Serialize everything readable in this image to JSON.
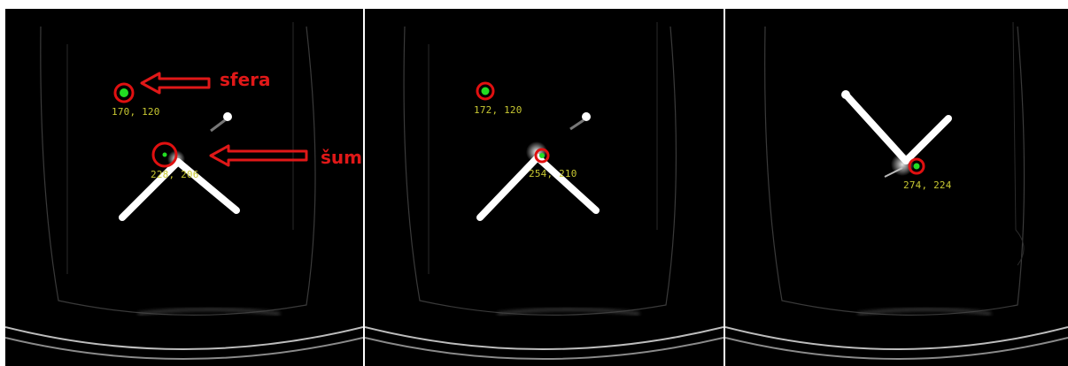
{
  "annotations": {
    "sphere_label": "sfera",
    "noise_label": "šum"
  },
  "panels": [
    {
      "id": "p1",
      "detections": [
        {
          "label": "170, 120"
        },
        {
          "label": "228, 206"
        }
      ]
    },
    {
      "id": "p2",
      "detections": [
        {
          "label": "172, 120"
        },
        {
          "label": "254, 210"
        }
      ]
    },
    {
      "id": "p3",
      "detections": [
        {
          "label": "274, 224"
        }
      ]
    }
  ],
  "colors": {
    "marker_ring": "#e01010",
    "marker_center": "#22dd22",
    "coord_text": "#c8c832",
    "annotation": "#e01818",
    "background": "#000000",
    "rod": "#ffffff"
  }
}
